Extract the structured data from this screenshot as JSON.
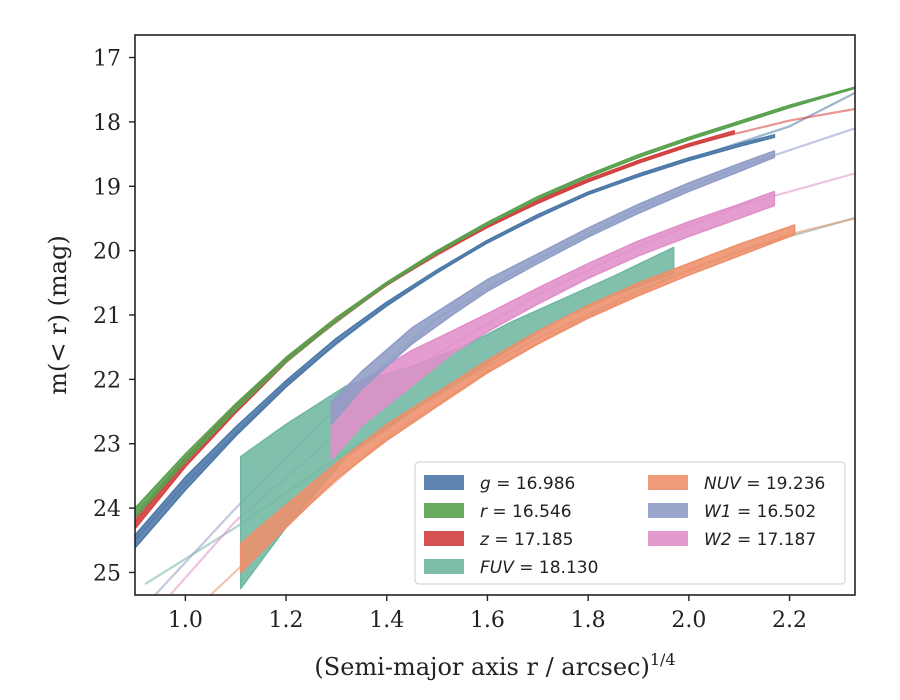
{
  "chart_data": {
    "type": "area",
    "xlabel": "(Semi-major axis r / arcsec)",
    "xlabel_sup": "1/4",
    "ylabel": "m(< r) (mag)",
    "xlim": [
      0.9,
      2.33
    ],
    "ylim": [
      25.35,
      16.65
    ],
    "y_inverted": true,
    "xticks": [
      "1.0",
      "1.2",
      "1.4",
      "1.6",
      "1.8",
      "2.0",
      "2.2"
    ],
    "yticks": [
      "17",
      "18",
      "19",
      "20",
      "21",
      "22",
      "23",
      "24",
      "25"
    ],
    "grid": false,
    "legend_position": "lower-right",
    "legend_columns": 2,
    "series": [
      {
        "name": "g = 16.986",
        "band": "g",
        "value": "16.986",
        "color": "#4C78A8",
        "band_x": [
          0.9,
          1.0,
          1.1,
          1.2,
          1.3,
          1.4,
          1.5,
          1.6,
          1.7,
          1.8,
          1.9,
          2.0,
          2.1,
          2.17
        ],
        "band_lo": [
          24.62,
          23.72,
          22.88,
          22.12,
          21.44,
          20.86,
          20.34,
          19.88,
          19.48,
          19.13,
          18.85,
          18.6,
          18.38,
          18.24
        ],
        "band_hi": [
          24.42,
          23.52,
          22.74,
          22.02,
          21.36,
          20.8,
          20.3,
          19.84,
          19.44,
          19.09,
          18.81,
          18.56,
          18.34,
          18.2
        ],
        "model_x": [
          0.9,
          1.0,
          1.2,
          1.4,
          1.6,
          1.8,
          2.0,
          2.2,
          2.33
        ],
        "model_y": [
          24.5,
          23.62,
          22.07,
          20.83,
          19.86,
          19.11,
          18.58,
          18.07,
          17.55
        ]
      },
      {
        "name": "r = 16.546",
        "band": "r",
        "value": "16.546",
        "color": "#59A14F",
        "band_x": [
          0.9,
          1.0,
          1.1,
          1.2,
          1.3,
          1.4,
          1.5,
          1.6,
          1.7,
          1.8,
          1.9,
          2.0,
          2.1,
          2.2,
          2.33
        ],
        "band_lo": [
          24.15,
          23.28,
          22.48,
          21.73,
          21.1,
          20.53,
          20.04,
          19.6,
          19.2,
          18.86,
          18.55,
          18.28,
          18.03,
          17.78,
          17.48
        ],
        "band_hi": [
          24.0,
          23.16,
          22.38,
          21.66,
          21.04,
          20.49,
          20.0,
          19.56,
          19.16,
          18.82,
          18.51,
          18.24,
          17.99,
          17.74,
          17.46
        ],
        "model_x": [
          0.9,
          1.0,
          1.2,
          1.4,
          1.6,
          1.8,
          2.0,
          2.2,
          2.33
        ],
        "model_y": [
          24.08,
          23.22,
          21.69,
          20.51,
          19.58,
          18.84,
          18.26,
          17.76,
          17.47
        ]
      },
      {
        "name": "z = 17.185",
        "band": "z",
        "value": "17.185",
        "color": "#D13F3F",
        "band_x": [
          0.9,
          1.0,
          1.1,
          1.2,
          1.3,
          1.4,
          1.5,
          1.6,
          1.7,
          1.8,
          1.9,
          2.0,
          2.09
        ],
        "band_lo": [
          24.32,
          23.36,
          22.52,
          21.74,
          21.1,
          20.54,
          20.06,
          19.64,
          19.26,
          18.93,
          18.64,
          18.38,
          18.18
        ],
        "band_hi": [
          24.14,
          23.22,
          22.4,
          21.66,
          21.04,
          20.5,
          20.02,
          19.6,
          19.22,
          18.89,
          18.6,
          18.34,
          18.14
        ],
        "model_x": [
          0.9,
          1.0,
          1.2,
          1.4,
          1.6,
          1.8,
          2.0,
          2.2,
          2.33
        ],
        "model_y": [
          24.23,
          23.29,
          21.7,
          20.52,
          19.62,
          18.91,
          18.36,
          17.98,
          17.8
        ]
      },
      {
        "name": "FUV = 18.130",
        "band": "FUV",
        "value": "18.130",
        "color": "#6FB7A2",
        "band_x": [
          1.11,
          1.2,
          1.32,
          1.45,
          1.55,
          1.65,
          1.75,
          1.85,
          1.97
        ],
        "band_lo": [
          25.25,
          24.3,
          23.2,
          22.5,
          22.0,
          21.5,
          21.05,
          20.7,
          20.35
        ],
        "band_hi": [
          23.2,
          22.7,
          22.1,
          21.8,
          21.5,
          21.1,
          20.75,
          20.4,
          19.95
        ],
        "model_x": [
          0.92,
          1.1,
          1.3,
          1.5,
          1.7,
          1.9,
          2.1,
          2.33
        ],
        "model_y": [
          25.18,
          24.3,
          23.23,
          22.23,
          21.36,
          20.62,
          20.0,
          19.49
        ]
      },
      {
        "name": "NUV = 19.236",
        "band": "NUV",
        "value": "19.236",
        "color": "#EE8F6B",
        "band_x": [
          1.11,
          1.2,
          1.3,
          1.4,
          1.5,
          1.6,
          1.7,
          1.8,
          1.9,
          2.0,
          2.1,
          2.21
        ],
        "band_lo": [
          25.0,
          24.3,
          23.55,
          22.95,
          22.42,
          21.9,
          21.45,
          21.05,
          20.7,
          20.38,
          20.08,
          19.75
        ],
        "band_hi": [
          24.55,
          23.95,
          23.3,
          22.7,
          22.2,
          21.7,
          21.25,
          20.85,
          20.5,
          20.2,
          19.9,
          19.6
        ],
        "model_x": [
          1.05,
          1.2,
          1.4,
          1.6,
          1.8,
          2.0,
          2.2,
          2.33
        ],
        "model_y": [
          25.35,
          24.25,
          22.9,
          21.87,
          21.02,
          20.3,
          19.75,
          19.5
        ]
      },
      {
        "name": "W1 = 16.502",
        "band": "W1",
        "value": "16.502",
        "color": "#8F9CC6",
        "band_x": [
          1.29,
          1.35,
          1.45,
          1.53,
          1.6,
          1.7,
          1.8,
          1.9,
          2.0,
          2.1,
          2.17
        ],
        "band_lo": [
          22.7,
          22.15,
          21.45,
          21.0,
          20.63,
          20.2,
          19.79,
          19.42,
          19.08,
          18.77,
          18.55
        ],
        "band_hi": [
          22.35,
          21.88,
          21.2,
          20.8,
          20.45,
          20.05,
          19.65,
          19.28,
          18.95,
          18.65,
          18.45
        ],
        "model_x": [
          0.94,
          1.1,
          1.3,
          1.5,
          1.7,
          1.9,
          2.1,
          2.33
        ],
        "model_y": [
          25.35,
          24.0,
          22.45,
          21.05,
          20.13,
          19.35,
          18.7,
          18.1
        ]
      },
      {
        "name": "W2 = 17.187",
        "band": "W2",
        "value": "17.187",
        "color": "#E08FC8",
        "band_x": [
          1.29,
          1.35,
          1.45,
          1.53,
          1.6,
          1.7,
          1.8,
          1.9,
          2.0,
          2.1,
          2.17
        ],
        "band_lo": [
          23.25,
          22.72,
          22.1,
          21.6,
          21.26,
          20.83,
          20.43,
          20.08,
          19.78,
          19.5,
          19.3
        ],
        "band_hi": [
          22.4,
          22.02,
          21.55,
          21.25,
          20.98,
          20.58,
          20.2,
          19.85,
          19.55,
          19.28,
          19.08
        ],
        "model_x": [
          0.97,
          1.1,
          1.3,
          1.5,
          1.7,
          1.9,
          2.1,
          2.33
        ],
        "model_y": [
          25.35,
          24.2,
          22.85,
          21.6,
          20.68,
          19.93,
          19.3,
          18.8
        ]
      }
    ]
  }
}
